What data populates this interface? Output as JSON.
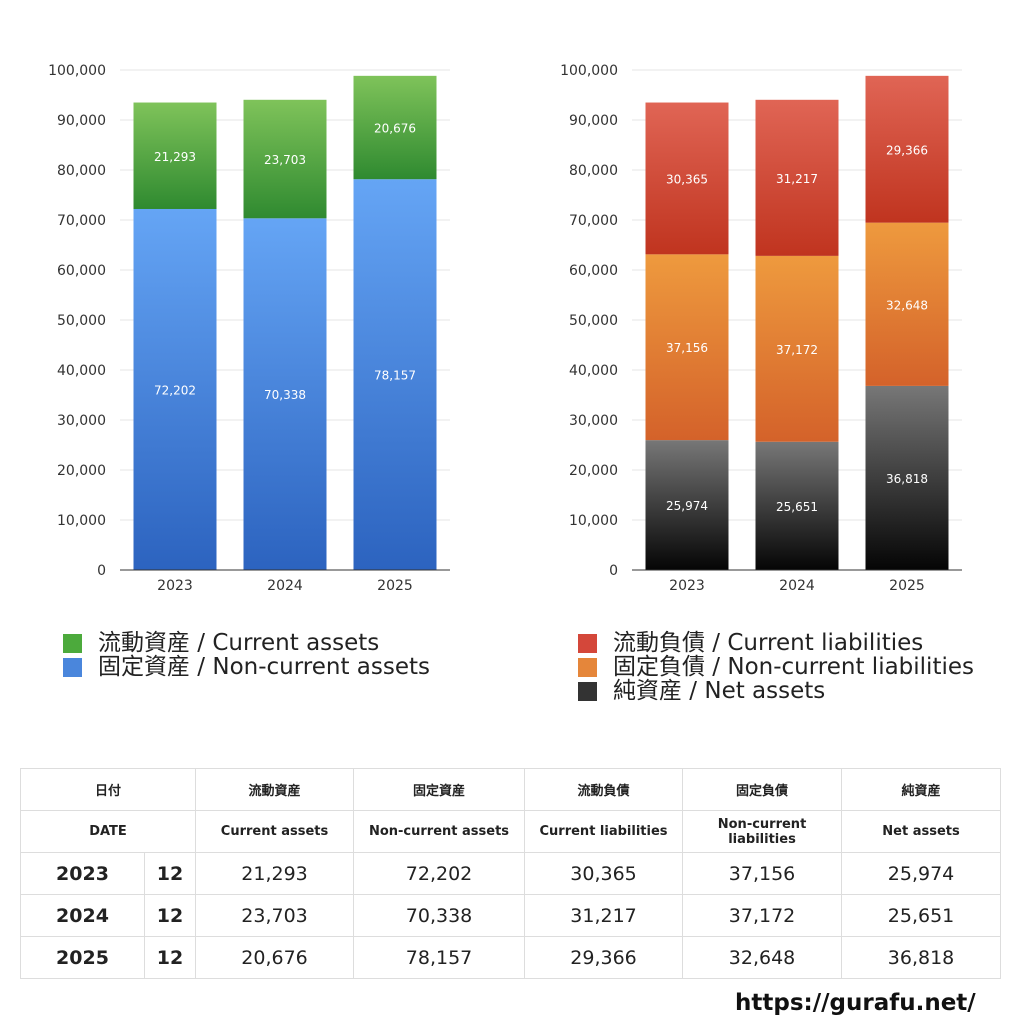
{
  "chart_data": [
    {
      "type": "bar",
      "stacked": true,
      "categories": [
        "2023",
        "2024",
        "2025"
      ],
      "ylim": [
        0,
        100000
      ],
      "yticks": [
        0,
        10000,
        20000,
        30000,
        40000,
        50000,
        60000,
        70000,
        80000,
        90000,
        100000
      ],
      "ytick_labels": [
        "0",
        "10,000",
        "20,000",
        "30,000",
        "40,000",
        "50,000",
        "60,000",
        "70,000",
        "80,000",
        "90,000",
        "100,000"
      ],
      "grid": true,
      "legend_placement": "bottom",
      "series": [
        {
          "name": "固定資産 / Non-current assets",
          "values": [
            72202,
            70338,
            78157
          ],
          "labels": [
            "72,202",
            "70,338",
            "78,157"
          ],
          "color_top": "#65a5f5",
          "color_bottom": "#2c63bf"
        },
        {
          "name": "流動資産 / Current assets",
          "values": [
            21293,
            23703,
            20676
          ],
          "labels": [
            "21,293",
            "23,703",
            "20,676"
          ],
          "color_top": "#7fc35a",
          "color_bottom": "#2f8a30"
        }
      ]
    },
    {
      "type": "bar",
      "stacked": true,
      "categories": [
        "2023",
        "2024",
        "2025"
      ],
      "ylim": [
        0,
        100000
      ],
      "yticks": [
        0,
        10000,
        20000,
        30000,
        40000,
        50000,
        60000,
        70000,
        80000,
        90000,
        100000
      ],
      "ytick_labels": [
        "0",
        "10,000",
        "20,000",
        "30,000",
        "40,000",
        "50,000",
        "60,000",
        "70,000",
        "80,000",
        "90,000",
        "100,000"
      ],
      "grid": true,
      "legend_placement": "bottom",
      "series": [
        {
          "name": "純資産 / Net assets",
          "values": [
            25974,
            25651,
            36818
          ],
          "labels": [
            "25,974",
            "25,651",
            "36,818"
          ],
          "color_top": "#777777",
          "color_bottom": "#050505"
        },
        {
          "name": "固定負債 / Non-current liabilities",
          "values": [
            37156,
            37172,
            32648
          ],
          "labels": [
            "37,156",
            "37,172",
            "32,648"
          ],
          "color_top": "#ee9a3e",
          "color_bottom": "#d4622a"
        },
        {
          "name": "流動負債 / Current liabilities",
          "values": [
            30365,
            31217,
            29366
          ],
          "labels": [
            "30,365",
            "31,217",
            "29,366"
          ],
          "color_top": "#e06555",
          "color_bottom": "#c0341f"
        }
      ]
    }
  ],
  "legend_left": [
    {
      "label": "流動資産 / Current assets",
      "color": "#4caa3c"
    },
    {
      "label": "固定資産 / Non-current assets",
      "color": "#4a86dc"
    }
  ],
  "legend_right": [
    {
      "label": "流動負債 / Current liabilities",
      "color": "#d4473a"
    },
    {
      "label": "固定負債 / Non-current liabilities",
      "color": "#e5863a"
    },
    {
      "label": "純資産 / Net assets",
      "color": "#333333"
    }
  ],
  "table": {
    "headers_ja": [
      "日付",
      "流動資産",
      "固定資産",
      "流動負債",
      "固定負債",
      "純資産"
    ],
    "headers_en": [
      "DATE",
      "Current assets",
      "Non-current assets",
      "Current liabilities",
      "Non-current liabilities",
      "Net assets"
    ],
    "rows": [
      {
        "year": "2023",
        "month": "12",
        "values": [
          "21,293",
          "72,202",
          "30,365",
          "37,156",
          "25,974"
        ]
      },
      {
        "year": "2024",
        "month": "12",
        "values": [
          "23,703",
          "70,338",
          "31,217",
          "37,172",
          "25,651"
        ]
      },
      {
        "year": "2025",
        "month": "12",
        "values": [
          "20,676",
          "78,157",
          "29,366",
          "32,648",
          "36,818"
        ]
      }
    ]
  },
  "footer": {
    "url": "https://gurafu.net/"
  }
}
